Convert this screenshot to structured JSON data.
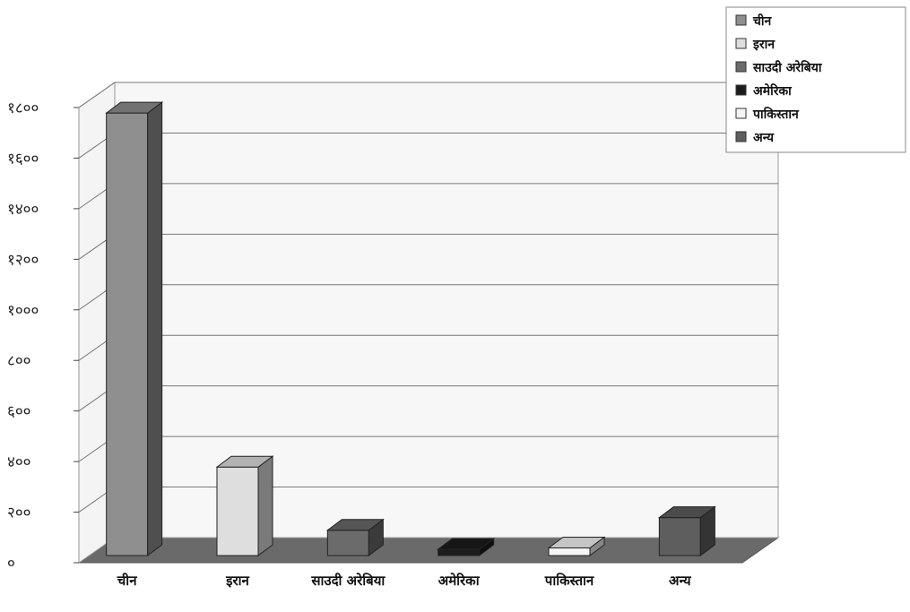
{
  "chart_data": {
    "type": "bar",
    "style": "3d-column",
    "categories": [
      "चीन",
      "इरान",
      "साउदी अरेबिया",
      "अमेरिका",
      "पाकिस्तान",
      "अन्य"
    ],
    "values": [
      1750,
      350,
      100,
      25,
      30,
      150
    ],
    "colors": [
      "#8f8f8f",
      "#dedede",
      "#6b6b6b",
      "#1c1c1c",
      "#f5f5f5",
      "#5e5e5e"
    ],
    "y_ticks": [
      "०",
      "२००",
      "४००",
      "६००",
      "८००",
      "१०००",
      "१२००",
      "१४००",
      "१६००",
      "१८००"
    ],
    "ylim": [
      0,
      1800
    ],
    "grid": true,
    "legend_position": "top-right",
    "legend": [
      "चीन",
      "इरान",
      "साउदी अरेबिया",
      "अमेरिका",
      "पाकिस्तान",
      "अन्य"
    ]
  }
}
